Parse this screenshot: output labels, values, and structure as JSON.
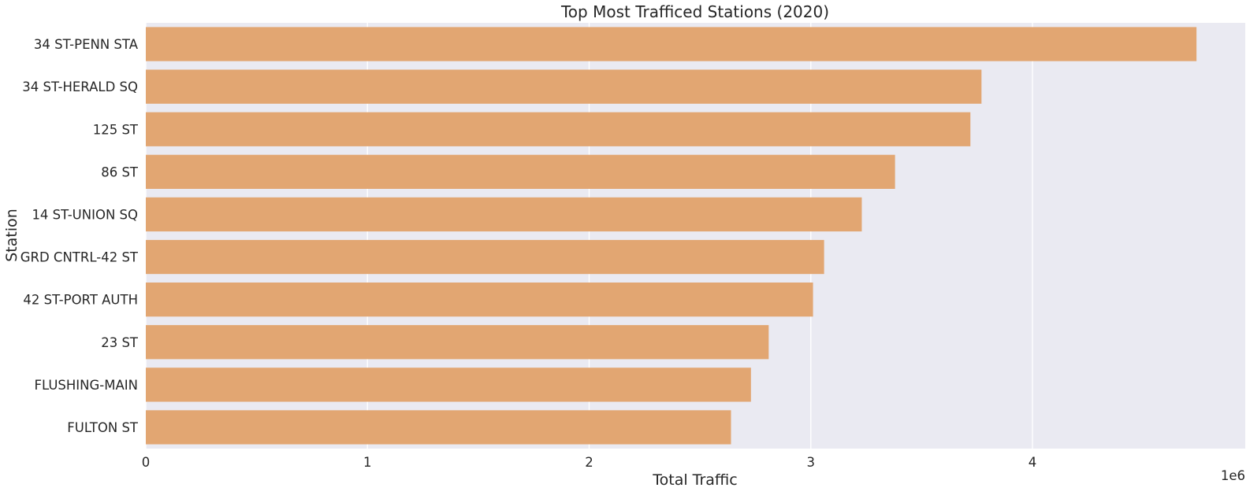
{
  "chart_data": {
    "type": "bar",
    "orientation": "horizontal",
    "title": "Top Most Trafficed Stations (2020)",
    "xlabel": "Total Traffic",
    "ylabel": "Station",
    "x_offset_label": "1e6",
    "x_scale": 1000000,
    "xlim": [
      0,
      4960000
    ],
    "x_ticks": [
      0,
      1000000,
      2000000,
      3000000,
      4000000
    ],
    "x_tick_labels": [
      "0",
      "1",
      "2",
      "3",
      "4"
    ],
    "grid": true,
    "legend": "none",
    "colors": {
      "bar": "#E2A672",
      "background": "#EAEAF2",
      "grid": "#FFFFFF",
      "text": "#262626"
    },
    "categories": [
      "34 ST-PENN STA",
      "34 ST-HERALD SQ",
      "125 ST",
      "86 ST",
      "14 ST-UNION SQ",
      "GRD CNTRL-42 ST",
      "42 ST-PORT AUTH",
      "23 ST",
      "FLUSHING-MAIN",
      "FULTON ST"
    ],
    "values": [
      4740000,
      3770000,
      3720000,
      3380000,
      3230000,
      3060000,
      3010000,
      2810000,
      2730000,
      2640000
    ]
  }
}
